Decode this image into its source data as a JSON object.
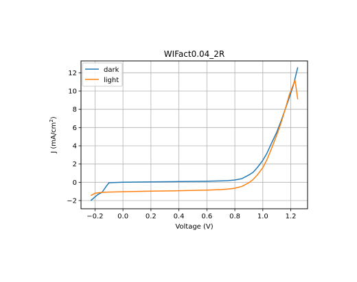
{
  "chart_data": {
    "type": "line",
    "title": "WIFact0.04_2R",
    "xlabel": "Voltage (V)",
    "ylabel": "J (mA/cm",
    "ylabel_sup": "2",
    "ylabel_tail": ")",
    "xlim": [
      -0.3,
      1.32
    ],
    "ylim": [
      -2.9,
      13.3
    ],
    "xticks": [
      -0.2,
      0.0,
      0.2,
      0.4,
      0.6,
      0.8,
      1.0,
      1.2
    ],
    "xtick_labels": [
      "−0.2",
      "0.0",
      "0.2",
      "0.4",
      "0.6",
      "0.8",
      "1.0",
      "1.2"
    ],
    "yticks": [
      -2,
      0,
      2,
      4,
      6,
      8,
      10,
      12
    ],
    "ytick_labels": [
      "−2",
      "0",
      "2",
      "4",
      "6",
      "8",
      "10",
      "12"
    ],
    "grid": true,
    "legend_position": "upper-left",
    "series": [
      {
        "name": "dark",
        "color": "#1f77b4",
        "points": [
          [
            -0.23,
            -2.0
          ],
          [
            -0.2,
            -1.6
          ],
          [
            -0.18,
            -1.35
          ],
          [
            -0.15,
            -1.1
          ],
          [
            -0.12,
            -0.45
          ],
          [
            -0.1,
            -0.05
          ],
          [
            0.0,
            0.0
          ],
          [
            0.2,
            0.05
          ],
          [
            0.4,
            0.08
          ],
          [
            0.6,
            0.12
          ],
          [
            0.7,
            0.15
          ],
          [
            0.75,
            0.18
          ],
          [
            0.8,
            0.25
          ],
          [
            0.85,
            0.4
          ],
          [
            0.9,
            0.8
          ],
          [
            0.93,
            1.1
          ],
          [
            0.96,
            1.6
          ],
          [
            1.0,
            2.4
          ],
          [
            1.03,
            3.2
          ],
          [
            1.06,
            4.2
          ],
          [
            1.1,
            5.5
          ],
          [
            1.13,
            6.7
          ],
          [
            1.16,
            8.0
          ],
          [
            1.19,
            9.3
          ],
          [
            1.22,
            10.7
          ],
          [
            1.25,
            12.6
          ]
        ]
      },
      {
        "name": "light",
        "color": "#ff7f0e",
        "points": [
          [
            -0.23,
            -1.45
          ],
          [
            -0.2,
            -1.2
          ],
          [
            -0.15,
            -1.1
          ],
          [
            -0.1,
            -1.07
          ],
          [
            0.0,
            -1.03
          ],
          [
            0.2,
            -0.97
          ],
          [
            0.4,
            -0.92
          ],
          [
            0.6,
            -0.85
          ],
          [
            0.7,
            -0.8
          ],
          [
            0.75,
            -0.75
          ],
          [
            0.8,
            -0.65
          ],
          [
            0.85,
            -0.45
          ],
          [
            0.9,
            -0.05
          ],
          [
            0.93,
            0.3
          ],
          [
            0.96,
            0.8
          ],
          [
            1.0,
            1.6
          ],
          [
            1.03,
            2.5
          ],
          [
            1.06,
            3.6
          ],
          [
            1.1,
            5.2
          ],
          [
            1.13,
            6.5
          ],
          [
            1.16,
            8.0
          ],
          [
            1.19,
            9.6
          ],
          [
            1.23,
            11.2
          ],
          [
            1.25,
            9.1
          ]
        ]
      }
    ]
  }
}
